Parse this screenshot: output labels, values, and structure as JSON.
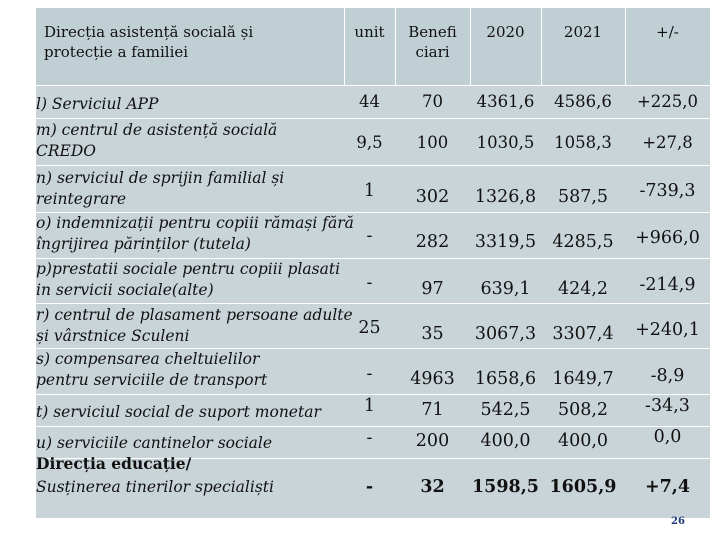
{
  "header": {
    "title_line1": "Direcția asistență socială și",
    "title_line2": "protecție a familiei",
    "unit": "unit",
    "benef_line1": "Benefi",
    "benef_line2": "ciari",
    "y2020": "2020",
    "y2021": "2021",
    "diff": "+/-"
  },
  "rows": [
    {
      "label": "l) Serviciul APP",
      "unit": "44",
      "benef": "70",
      "v2020": "4361,6",
      "v2021": "4586,6",
      "diff": "+225,0"
    },
    {
      "label": "m) centrul de asistență socială CREDO",
      "unit": "9,5",
      "benef": "100",
      "v2020": "1030,5",
      "v2021": "1058,3",
      "diff": "+27,8"
    },
    {
      "label": "n) serviciul de sprijin familial și reintegrare",
      "unit": "1",
      "benef": "302",
      "v2020": "1326,8",
      "v2021": "587,5",
      "diff": "-739,3"
    },
    {
      "label": "o) indemnizații pentru copiii rămași fără îngrijirea părinților (tutela)",
      "unit": "-",
      "benef": "282",
      "v2020": "3319,5",
      "v2021": "4285,5",
      "diff": "+966,0"
    },
    {
      "label": "p)prestatii sociale pentru copiii plasati in servicii sociale(alte)",
      "unit": "-",
      "benef": "97",
      "v2020": "639,1",
      "v2021": "424,2",
      "diff": "-214,9"
    },
    {
      "label": "r) centrul de plasament persoane adulte și vârstnice Sculeni",
      "unit": "25",
      "benef": "35",
      "v2020": "3067,3",
      "v2021": "3307,4",
      "diff": "+240,1"
    },
    {
      "label": "s) compensarea cheltuielilor pentru serviciile de transport",
      "unit": "-",
      "benef": "4963",
      "v2020": "1658,6",
      "v2021": "1649,7",
      "diff": "-8,9"
    },
    {
      "label": "t) serviciul social de suport monetar",
      "unit": "1",
      "benef": "71",
      "v2020": "542,5",
      "v2021": "508,2",
      "diff": "-34,3"
    },
    {
      "label": "u) serviciile cantinelor sociale",
      "unit": "-",
      "benef": "200",
      "v2020": "400,0",
      "v2021": "400,0",
      "diff": "0,0"
    },
    {
      "unit": "-",
      "benef": "32",
      "v2020": "1598,5",
      "v2021": "1605,9",
      "diff": "+7,4"
    }
  ],
  "section": {
    "title": "Direcția educație/",
    "subtitle": "Susținerea tinerilor specialiști"
  },
  "page_number": "26"
}
